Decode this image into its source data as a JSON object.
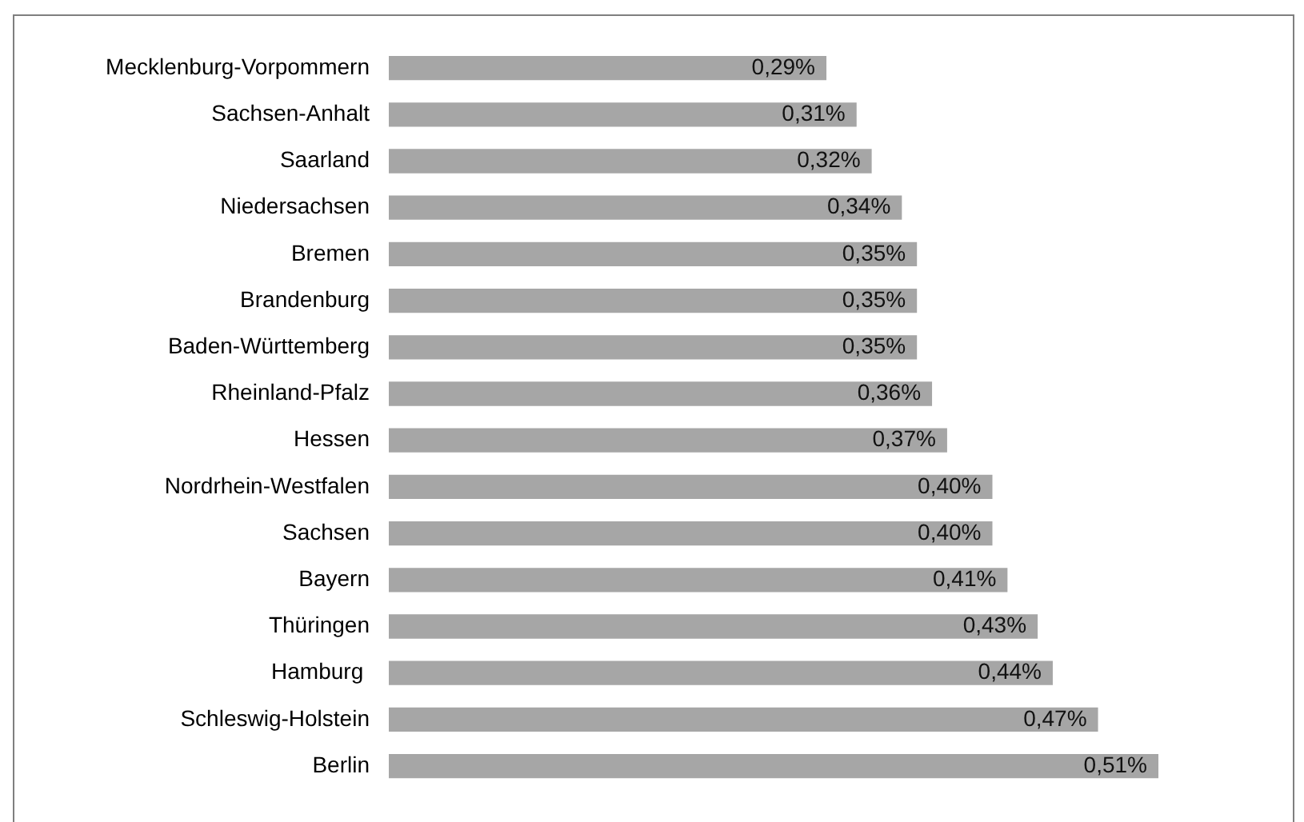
{
  "chart_data": {
    "type": "bar",
    "orientation": "horizontal",
    "categories": [
      "Mecklenburg-Vorpommern",
      "Sachsen-Anhalt",
      "Saarland",
      "Niedersachsen",
      "Bremen",
      "Brandenburg",
      "Baden-Württemberg",
      "Rheinland-Pfalz",
      "Hessen",
      "Nordrhein-Westfalen",
      "Sachsen",
      "Bayern",
      "Thüringen",
      "Hamburg ",
      "Schleswig-Holstein",
      "Berlin"
    ],
    "values": [
      0.29,
      0.31,
      0.32,
      0.34,
      0.35,
      0.35,
      0.35,
      0.36,
      0.37,
      0.4,
      0.4,
      0.41,
      0.43,
      0.44,
      0.47,
      0.51
    ],
    "color": "#a6a6a6",
    "value_labels": [
      "0,29%",
      "0,31%",
      "0,32%",
      "0,34%",
      "0,35%",
      "0,35%",
      "0,35%",
      "0,36%",
      "0,37%",
      "0,40%",
      "0,40%",
      "0,41%",
      "0,43%",
      "0,44%",
      "0,47%",
      "0,51%"
    ],
    "tick_labels": "y"
  }
}
